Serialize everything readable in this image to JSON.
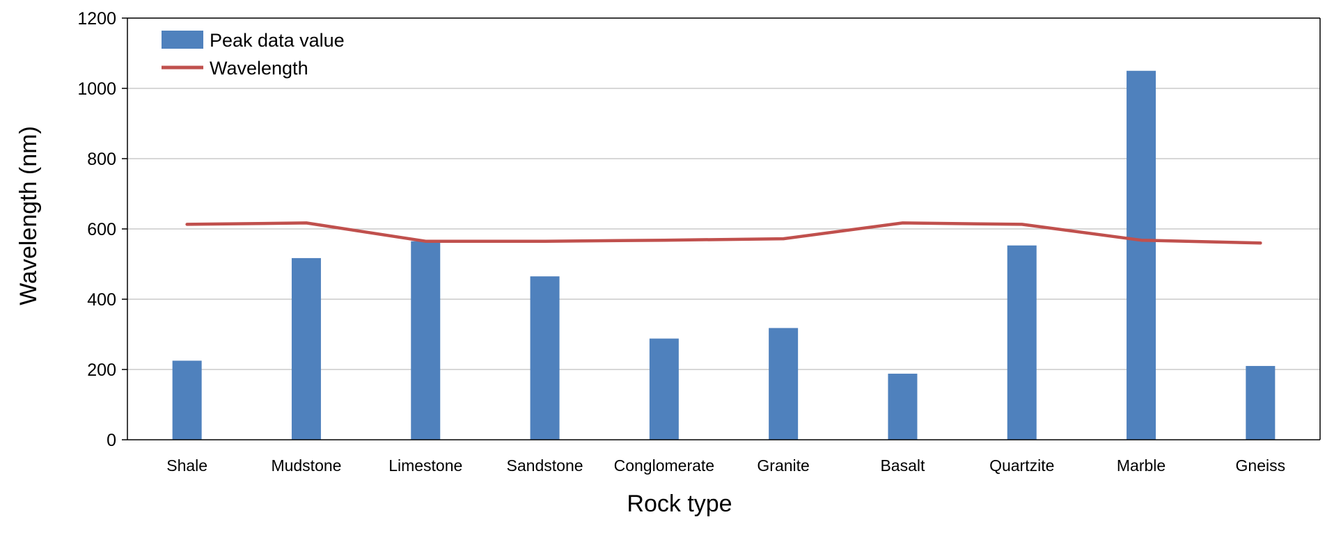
{
  "chart_data": {
    "type": "bar",
    "title": "",
    "xlabel": "Rock type",
    "ylabel": "Wavelength (nm)",
    "ylim": [
      0,
      1200
    ],
    "yticks": [
      0,
      200,
      400,
      600,
      800,
      1000,
      1200
    ],
    "grid": true,
    "legend_position": "top-left",
    "categories": [
      "Shale",
      "Mudstone",
      "Limestone",
      "Sandstone",
      "Conglomerate",
      "Granite",
      "Basalt",
      "Quartzite",
      "Marble",
      "Gneiss"
    ],
    "series": [
      {
        "name": "Peak data value",
        "type": "bar",
        "color": "#4f81bd",
        "values": [
          225,
          517,
          565,
          465,
          288,
          318,
          188,
          553,
          1050,
          210
        ]
      },
      {
        "name": "Wavelength",
        "type": "line",
        "color": "#c0504d",
        "values": [
          613,
          617,
          565,
          565,
          568,
          572,
          617,
          613,
          568,
          560
        ]
      }
    ]
  }
}
